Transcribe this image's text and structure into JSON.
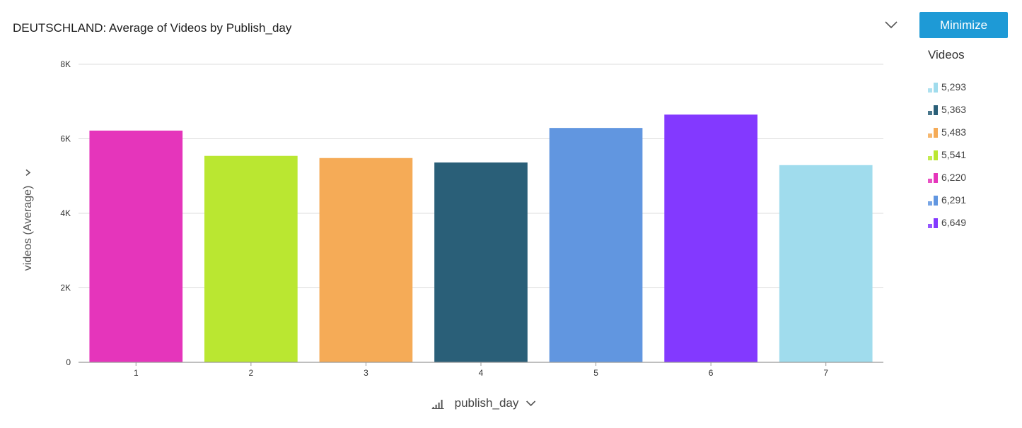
{
  "header": {
    "title": "DEUTSCHLAND: Average of Videos by Publish_day",
    "minimize_label": "Minimize",
    "chevron_icon": "chevron-down-icon",
    "accent_color": "#1e9ad6"
  },
  "legend": {
    "title": "Videos",
    "items": [
      {
        "label": "5,293",
        "color": "#a0dced"
      },
      {
        "label": "5,363",
        "color": "#2a5f78"
      },
      {
        "label": "5,483",
        "color": "#f5ab57"
      },
      {
        "label": "5,541",
        "color": "#bae731"
      },
      {
        "label": "6,220",
        "color": "#e535bb"
      },
      {
        "label": "6,291",
        "color": "#6196e0"
      },
      {
        "label": "6,649",
        "color": "#8339ff"
      }
    ]
  },
  "chart_data": {
    "type": "bar",
    "title": "DEUTSCHLAND: Average of Videos by Publish_day",
    "xlabel": "publish_day",
    "ylabel": "videos (Average)",
    "categories": [
      "1",
      "2",
      "3",
      "4",
      "5",
      "6",
      "7"
    ],
    "values": [
      6220,
      5541,
      5483,
      5363,
      6291,
      6649,
      5293
    ],
    "colors": [
      "#e535bb",
      "#bae731",
      "#f5ab57",
      "#2a5f78",
      "#6196e0",
      "#8339ff",
      "#a0dced"
    ],
    "ylim": [
      0,
      8000
    ],
    "yticks": [
      {
        "value": 0,
        "label": "0"
      },
      {
        "value": 2000,
        "label": "2K"
      },
      {
        "value": 4000,
        "label": "4K"
      },
      {
        "value": 6000,
        "label": "6K"
      },
      {
        "value": 8000,
        "label": "8K"
      }
    ],
    "grid": true,
    "legend_position": "right"
  },
  "axes": {
    "x_sort_icon": "sort-bars-icon",
    "chevron_icon": "chevron-icon"
  }
}
